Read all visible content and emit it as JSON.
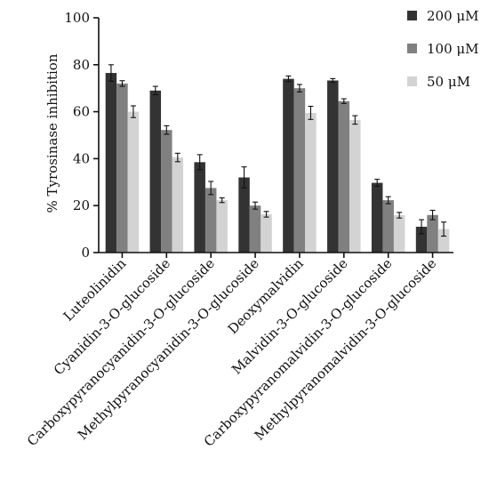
{
  "chart_data": {
    "type": "bar",
    "title": "",
    "xlabel": "",
    "ylabel": "% Tyrosinase inhibition",
    "ylim": [
      0,
      100
    ],
    "yticks": [
      0,
      20,
      40,
      60,
      80,
      100
    ],
    "grid": false,
    "legend_position": "top-right",
    "categories": [
      "Luteolinidin",
      "Cyanidin-3-O-glucoside",
      "Carboxypyranocyanidin-3-O-glucoside",
      "Methylpyranocyanidin-3-O-glucoside",
      "Deoxymalvidin",
      "Malvidin-3-O-glucoside",
      "Carboxypyranomalvidin-3-O-glucoside",
      "Methylpyranomalvidin-3-O-glucoside"
    ],
    "series": [
      {
        "name": "200 μM",
        "color": "#333333",
        "values": [
          76.5,
          69,
          38.5,
          32,
          74,
          73.3,
          29.7,
          11
        ],
        "errors": [
          3.5,
          1.8,
          3.2,
          4.5,
          1.2,
          0.8,
          1.5,
          3.0
        ]
      },
      {
        "name": "100 μM",
        "color": "#808080",
        "values": [
          72,
          52.2,
          27.5,
          20,
          70,
          64.5,
          22.3,
          16
        ],
        "errors": [
          1.2,
          1.8,
          2.8,
          1.5,
          1.6,
          1.0,
          1.5,
          2.0
        ]
      },
      {
        "name": "50 μM",
        "color": "#d3d3d3",
        "values": [
          60,
          40.5,
          22.3,
          16.3,
          59.5,
          56.5,
          15.9,
          10
        ],
        "errors": [
          2.5,
          1.8,
          1.0,
          1.2,
          2.8,
          1.8,
          1.2,
          3.0
        ]
      }
    ]
  }
}
